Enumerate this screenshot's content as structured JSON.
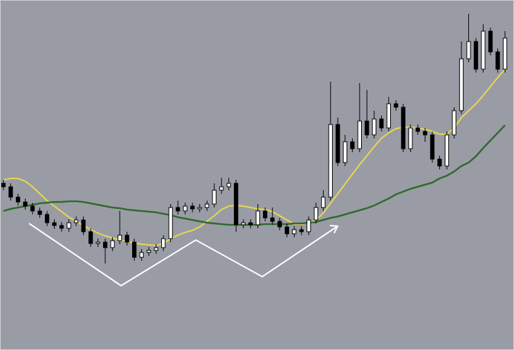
{
  "chart_data": {
    "type": "candlestick",
    "open": [
      241,
      236,
      221,
      214,
      208,
      201,
      196,
      184,
      180,
      176,
      184,
      188,
      171,
      154,
      156,
      148,
      158,
      166,
      156,
      134,
      141,
      144,
      148,
      161,
      206,
      201,
      208,
      204,
      206,
      211,
      231,
      236,
      241,
      181,
      184,
      181,
      201,
      191,
      186,
      178,
      168,
      174,
      171,
      188,
      206,
      221,
      326,
      271,
      301,
      291,
      331,
      311,
      334,
      321,
      356,
      351,
      291,
      321,
      316,
      311,
      276,
      266,
      311,
      346,
      421,
      446,
      406,
      461,
      431,
      406
    ],
    "high": [
      246,
      241,
      226,
      219,
      213,
      206,
      201,
      189,
      185,
      189,
      193,
      193,
      176,
      161,
      161,
      163,
      201,
      171,
      161,
      146,
      149,
      153,
      166,
      211,
      216,
      213,
      213,
      211,
      216,
      241,
      249,
      249,
      246,
      189,
      189,
      211,
      206,
      206,
      191,
      183,
      179,
      179,
      193,
      213,
      231,
      388,
      336,
      311,
      306,
      386,
      376,
      346,
      339,
      366,
      361,
      356,
      326,
      326,
      321,
      316,
      281,
      316,
      351,
      446,
      486,
      451,
      471,
      466,
      436,
      461
    ],
    "low": [
      231,
      216,
      209,
      203,
      196,
      191,
      179,
      175,
      171,
      171,
      179,
      166,
      149,
      149,
      125,
      143,
      153,
      151,
      129,
      129,
      136,
      139,
      143,
      156,
      196,
      196,
      199,
      199,
      201,
      206,
      226,
      231,
      171,
      176,
      176,
      176,
      186,
      181,
      173,
      163,
      163,
      166,
      166,
      183,
      201,
      216,
      266,
      266,
      286,
      286,
      306,
      306,
      316,
      316,
      346,
      286,
      286,
      311,
      301,
      271,
      261,
      261,
      306,
      341,
      416,
      401,
      401,
      426,
      401,
      401
    ],
    "close": [
      236,
      221,
      214,
      208,
      201,
      196,
      184,
      180,
      176,
      184,
      188,
      171,
      154,
      156,
      148,
      158,
      166,
      156,
      134,
      141,
      144,
      148,
      161,
      206,
      201,
      208,
      204,
      206,
      211,
      231,
      236,
      241,
      181,
      184,
      181,
      201,
      191,
      186,
      178,
      168,
      174,
      171,
      188,
      206,
      221,
      326,
      271,
      301,
      291,
      331,
      311,
      334,
      321,
      356,
      351,
      291,
      321,
      316,
      311,
      276,
      266,
      311,
      346,
      421,
      446,
      406,
      461,
      431,
      406,
      451
    ],
    "up_color": "#ffffff",
    "down_color": "#000000",
    "ylim": [
      0,
      506
    ],
    "lines": [
      {
        "color": "#e8d84e",
        "values": [
          246,
          248,
          248,
          244,
          236,
          226,
          216,
          208,
          200,
          192,
          186,
          180,
          174,
          169,
          165,
          162,
          159,
          157,
          155,
          153,
          152,
          151,
          154,
          161,
          166,
          170,
          173,
          178,
          186,
          194,
          203,
          208,
          209,
          208,
          206,
          204,
          203,
          200,
          194,
          188,
          182,
          182,
          184,
          188,
          198,
          212,
          226,
          240,
          254,
          268,
          281,
          294,
          306,
          314,
          320,
          322,
          322,
          321,
          319,
          316,
          312,
          312,
          321,
          336,
          346,
          356,
          368,
          381,
          394,
          406
        ]
      },
      {
        "color": "#2f6b2c",
        "values": [
          201,
          204,
          206,
          208,
          210,
          212,
          213,
          214,
          214,
          215,
          215,
          214,
          212,
          210,
          208,
          206,
          205,
          203,
          202,
          201,
          200,
          199,
          197,
          195,
          192,
          190,
          188,
          186,
          184,
          183,
          182,
          181,
          181,
          181,
          181,
          181,
          182,
          182,
          182,
          182,
          183,
          183,
          184,
          185,
          188,
          191,
          193,
          196,
          199,
          202,
          205,
          209,
          214,
          219,
          225,
          229,
          233,
          236,
          239,
          242,
          248,
          252,
          258,
          266,
          271,
          280,
          292,
          303,
          314,
          325
        ]
      }
    ]
  }
}
